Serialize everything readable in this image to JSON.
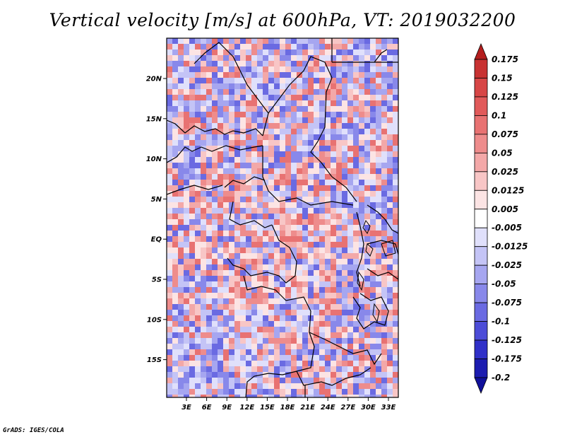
{
  "title": "Vertical velocity [m/s] at 600hPa, VT: 2019032200",
  "credit": "GrADS: IGES/COLA",
  "map": {
    "lon_labels": [
      "3E",
      "6E",
      "9E",
      "12E",
      "15E",
      "18E",
      "21E",
      "24E",
      "27E",
      "30E",
      "33E"
    ],
    "lat_labels": [
      "20N",
      "15N",
      "10N",
      "5N",
      "EQ",
      "5S",
      "10S",
      "15S"
    ]
  },
  "colorbar": {
    "levels": [
      "0.175",
      "0.15",
      "0.125",
      "0.1",
      "0.075",
      "0.05",
      "0.025",
      "0.0125",
      "0.005",
      "-0.005",
      "-0.0125",
      "-0.025",
      "-0.05",
      "-0.075",
      "-0.1",
      "-0.125",
      "-0.175",
      "-0.2"
    ],
    "colors": [
      "#b41e1e",
      "#c83232",
      "#d74646",
      "#e15a5a",
      "#e87272",
      "#ee8c8c",
      "#f3a8a8",
      "#f8c6c6",
      "#fce4e4",
      "#ffffff",
      "#e0e0fb",
      "#c4c4f6",
      "#a6a6f0",
      "#8888ea",
      "#6a6ae2",
      "#4c4cd8",
      "#3030c8",
      "#1c1cb0",
      "#10109a"
    ]
  }
}
